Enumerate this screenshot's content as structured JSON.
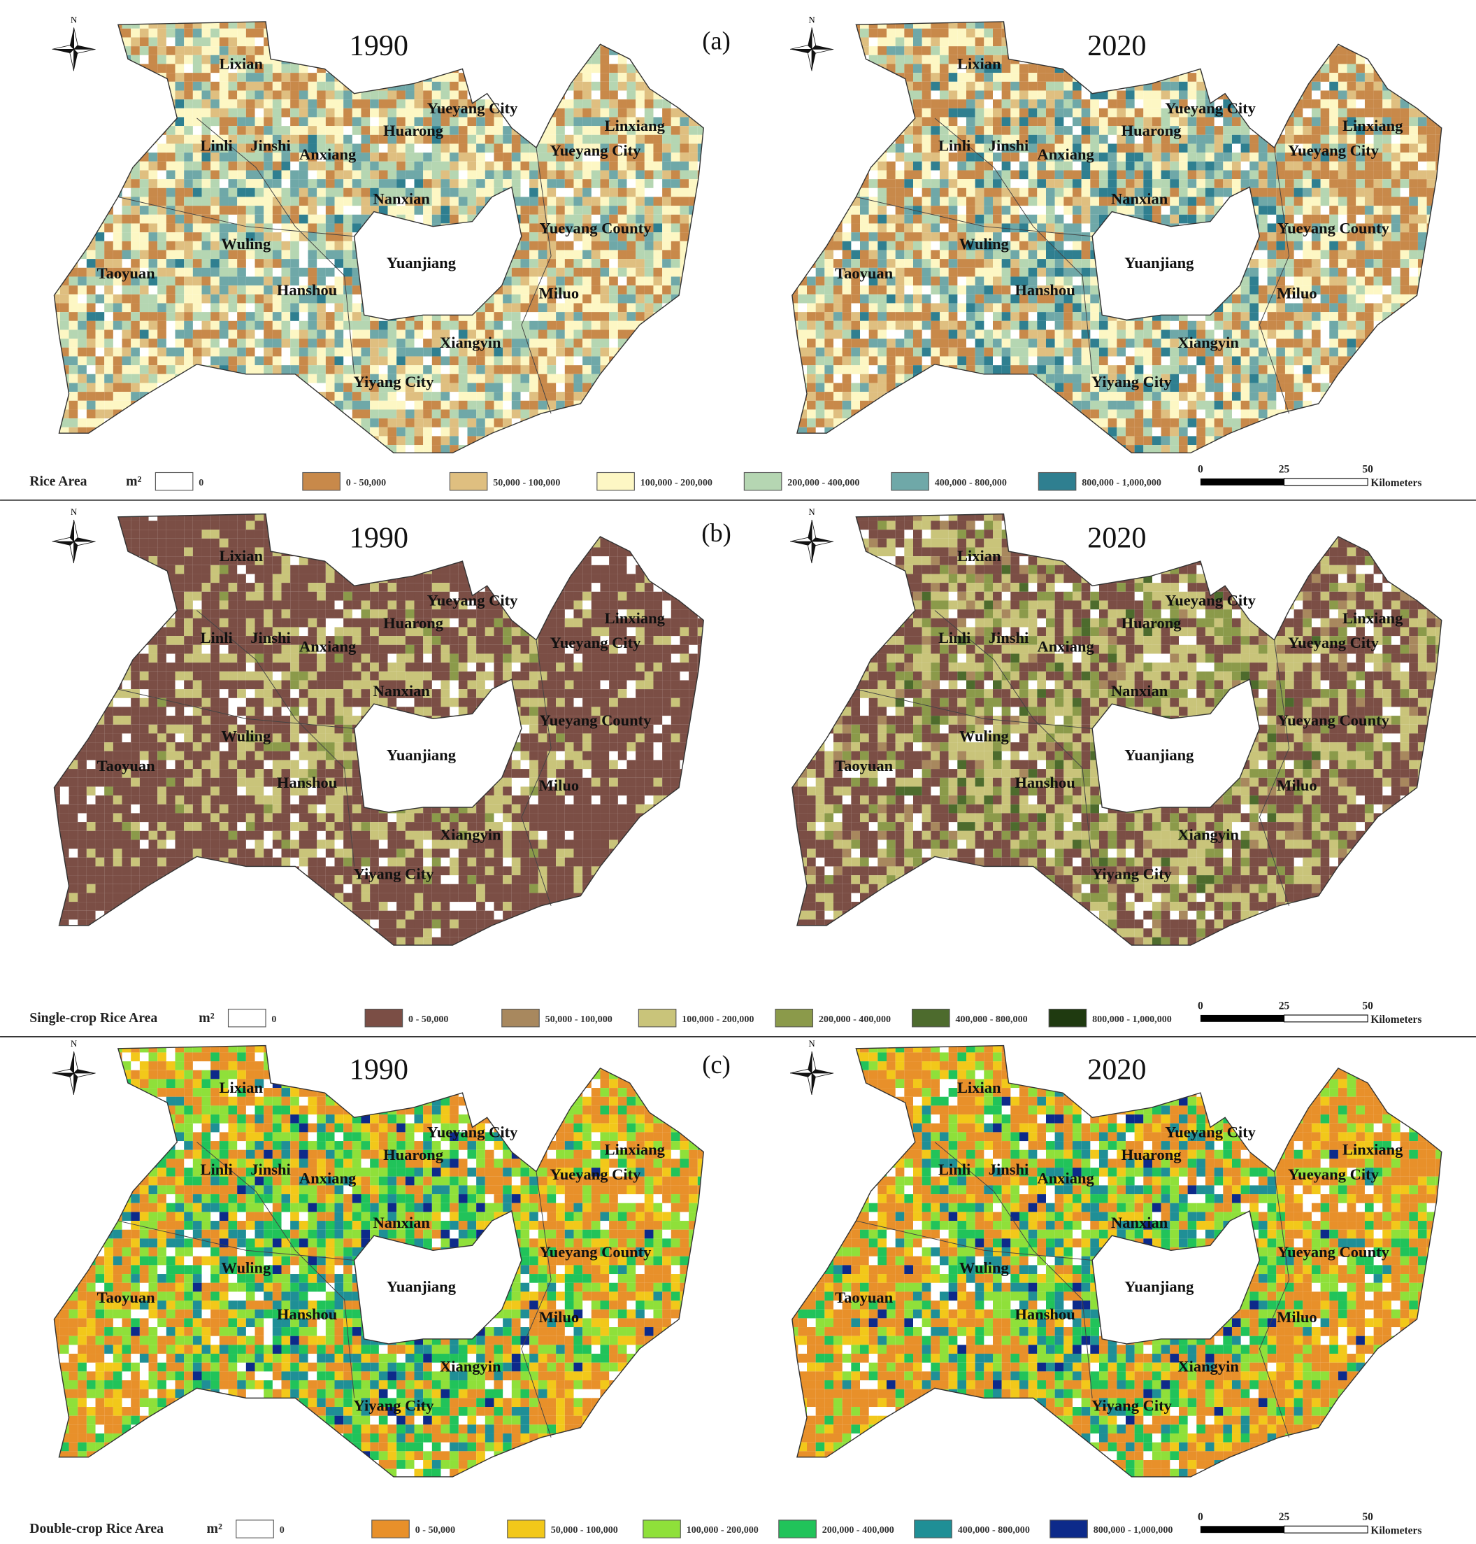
{
  "north": "N",
  "place_names": [
    "Lixian",
    "Linli",
    "Jinshi",
    "Anxiang",
    "Huarong",
    "Yueyang City",
    "Linxiang",
    "Yueyang City",
    "Nanxian",
    "Yueyang County",
    "Wuling",
    "Taoyuan",
    "Yuanjiang",
    "Hanshou",
    "Miluo",
    "Xiangyin",
    "Yiyang City"
  ],
  "scale": {
    "ticks": [
      "0",
      "25",
      "50"
    ],
    "unit": "Kilometers"
  },
  "panels": [
    {
      "label": "(a)",
      "maps": [
        {
          "year": "1990"
        },
        {
          "year": "2020"
        }
      ],
      "legend": {
        "title": "Rice Area",
        "unit": "m²",
        "classes": [
          {
            "label": "0",
            "color": "#ffffff"
          },
          {
            "label": "0 - 50,000",
            "color": "#c8894a"
          },
          {
            "label": "50,000 - 100,000",
            "color": "#dfbf80"
          },
          {
            "label": "100,000 - 200,000",
            "color": "#fdf7c4"
          },
          {
            "label": "200,000 - 400,000",
            "color": "#b5d6b2"
          },
          {
            "label": "400,000 - 800,000",
            "color": "#6fa8a8"
          },
          {
            "label": "800,000 - 1,000,000",
            "color": "#2f7f90"
          }
        ]
      }
    },
    {
      "label": "(b)",
      "maps": [
        {
          "year": "1990"
        },
        {
          "year": "2020"
        }
      ],
      "legend": {
        "title": "Single-crop Rice Area",
        "unit": "m²",
        "classes": [
          {
            "label": "0",
            "color": "#ffffff"
          },
          {
            "label": "0 - 50,000",
            "color": "#7b4e45"
          },
          {
            "label": "50,000 - 100,000",
            "color": "#a8885e"
          },
          {
            "label": "100,000 - 200,000",
            "color": "#c9c47a"
          },
          {
            "label": "200,000 - 400,000",
            "color": "#8b9a4a"
          },
          {
            "label": "400,000 - 800,000",
            "color": "#4d6b2d"
          },
          {
            "label": "800,000 - 1,000,000",
            "color": "#1f3a10"
          }
        ]
      }
    },
    {
      "label": "(c)",
      "maps": [
        {
          "year": "1990"
        },
        {
          "year": "2020"
        }
      ],
      "legend": {
        "title": "Double-crop Rice Area",
        "unit": "m²",
        "classes": [
          {
            "label": "0",
            "color": "#ffffff"
          },
          {
            "label": "0 - 50,000",
            "color": "#e8902a"
          },
          {
            "label": "50,000 - 100,000",
            "color": "#f2c81a"
          },
          {
            "label": "100,000 - 200,000",
            "color": "#8fe03a"
          },
          {
            "label": "200,000 - 400,000",
            "color": "#21c35a"
          },
          {
            "label": "400,000 - 800,000",
            "color": "#1f8f96"
          },
          {
            "label": "800,000 - 1,000,000",
            "color": "#0d2a8a"
          }
        ]
      }
    }
  ]
}
